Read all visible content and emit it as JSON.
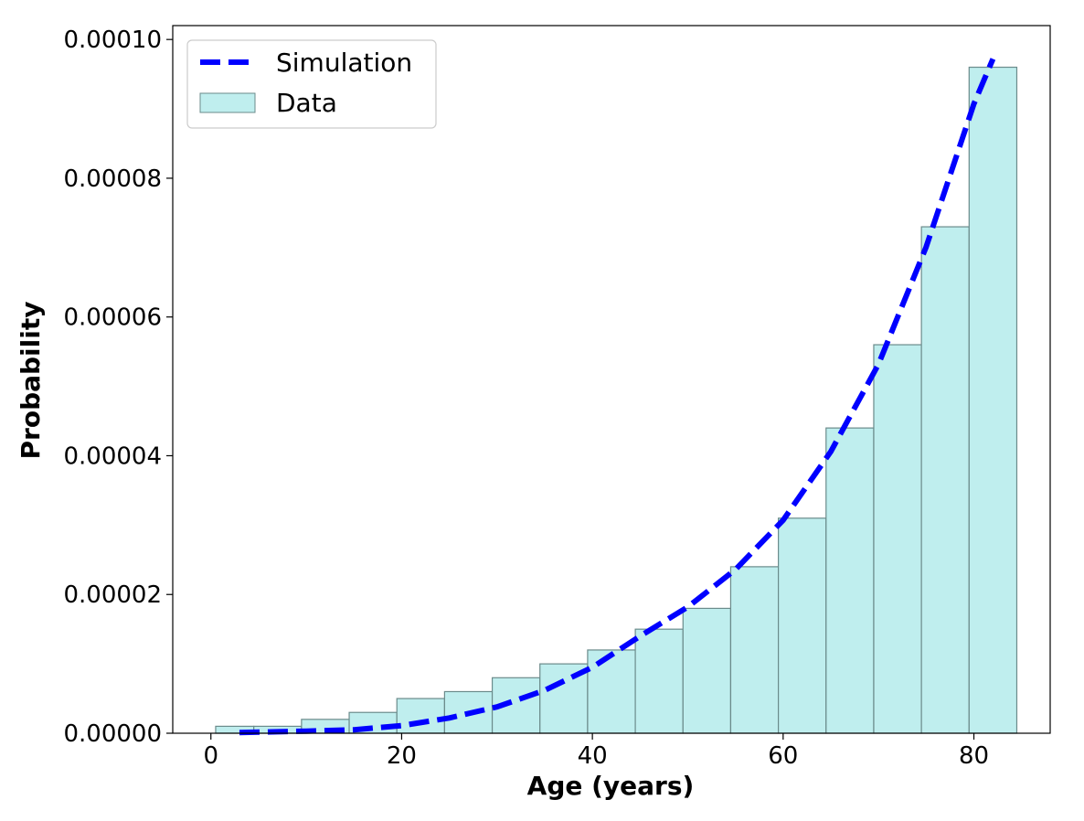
{
  "chart_data": {
    "type": "bar",
    "title": "",
    "xlabel": "Age (years)",
    "ylabel": "Probability",
    "xlim": [
      -4,
      88
    ],
    "ylim": [
      0,
      0.000102
    ],
    "xticks": [
      0,
      20,
      40,
      60,
      80
    ],
    "xtick_labels": [
      "0",
      "20",
      "40",
      "60",
      "80"
    ],
    "yticks": [
      0,
      2e-05,
      4e-05,
      6e-05,
      8e-05,
      0.0001
    ],
    "ytick_labels": [
      "0.00000",
      "0.00002",
      "0.00004",
      "0.00006",
      "0.00008",
      "0.00010"
    ],
    "grid": false,
    "legend_position": "top-left",
    "series": [
      {
        "name": "Data",
        "kind": "histogram",
        "color": "#bfeeee",
        "edge_color": "#6b8b8b",
        "bins": [
          [
            0.5,
            4.5
          ],
          [
            4.5,
            9.5
          ],
          [
            9.5,
            14.5
          ],
          [
            14.5,
            19.5
          ],
          [
            19.5,
            24.5
          ],
          [
            24.5,
            29.5
          ],
          [
            29.5,
            34.5
          ],
          [
            34.5,
            39.5
          ],
          [
            39.5,
            44.5
          ],
          [
            44.5,
            49.5
          ],
          [
            49.5,
            54.5
          ],
          [
            54.5,
            59.5
          ],
          [
            59.5,
            64.5
          ],
          [
            64.5,
            69.5
          ],
          [
            69.5,
            74.5
          ],
          [
            74.5,
            79.5
          ],
          [
            79.5,
            84.5
          ]
        ],
        "values": [
          1e-06,
          1e-06,
          2e-06,
          3e-06,
          5e-06,
          6e-06,
          8e-06,
          1e-05,
          1.2e-05,
          1.5e-05,
          1.8e-05,
          2.4e-05,
          3.1e-05,
          4.4e-05,
          5.6e-05,
          7.3e-05,
          9.6e-05
        ]
      },
      {
        "name": "Simulation",
        "kind": "line",
        "style": "dashed",
        "color": "#0000ff",
        "x": [
          3,
          10,
          15,
          20,
          25,
          30,
          35,
          40,
          45,
          50,
          55,
          60,
          65,
          70,
          75,
          80,
          82
        ],
        "values": [
          1e-07,
          3e-07,
          5e-07,
          1.1e-06,
          2.2e-06,
          3.8e-06,
          6.2e-06,
          9.5e-06,
          1.4e-05,
          1.82e-05,
          2.36e-05,
          3.07e-05,
          4.06e-05,
          5.32e-05,
          7.01e-05,
          9.07e-05,
          9.72e-05
        ]
      }
    ]
  }
}
